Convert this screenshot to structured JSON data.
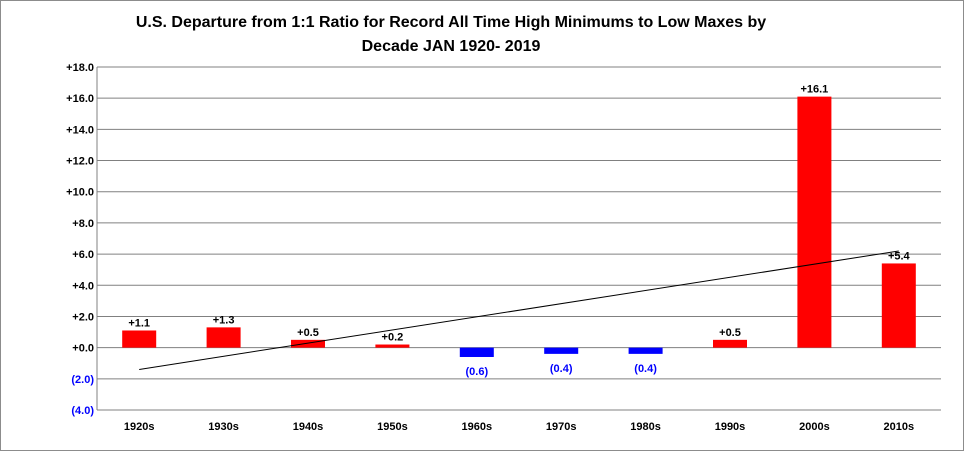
{
  "chart_data": {
    "type": "bar",
    "title_line1": "U.S. Departure from 1:1 Ratio for Record All Time High Minimums to Low Maxes by",
    "title_line2": "Decade JAN 1920- 2019",
    "categories": [
      "1920s",
      "1930s",
      "1940s",
      "1950s",
      "1960s",
      "1970s",
      "1980s",
      "1990s",
      "2000s",
      "2010s"
    ],
    "values": [
      1.1,
      1.3,
      0.5,
      0.2,
      -0.6,
      -0.4,
      -0.4,
      0.5,
      16.1,
      5.4
    ],
    "data_labels": [
      "+1.1",
      "+1.3",
      "+0.5",
      "+0.2",
      "(0.6)",
      "(0.4)",
      "(0.4)",
      "+0.5",
      "+16.1",
      "+5.4"
    ],
    "ylim": [
      -4,
      18
    ],
    "yticks": [
      18,
      16,
      14,
      12,
      10,
      8,
      6,
      4,
      2,
      0,
      -2,
      -4
    ],
    "ytick_labels": [
      "+18.0",
      "+16.0",
      "+14.0",
      "+12.0",
      "+10.0",
      "+8.0",
      "+6.0",
      "+4.0",
      "+2.0",
      "+0.0",
      "(2.0)",
      "(4.0)"
    ],
    "grid": true,
    "trendline": {
      "type": "linear",
      "start": -1.4,
      "end": 6.2
    },
    "colors": {
      "positive": "#ff0000",
      "negative": "#0000ff",
      "grid": "#808080",
      "trendline": "#000000"
    }
  }
}
